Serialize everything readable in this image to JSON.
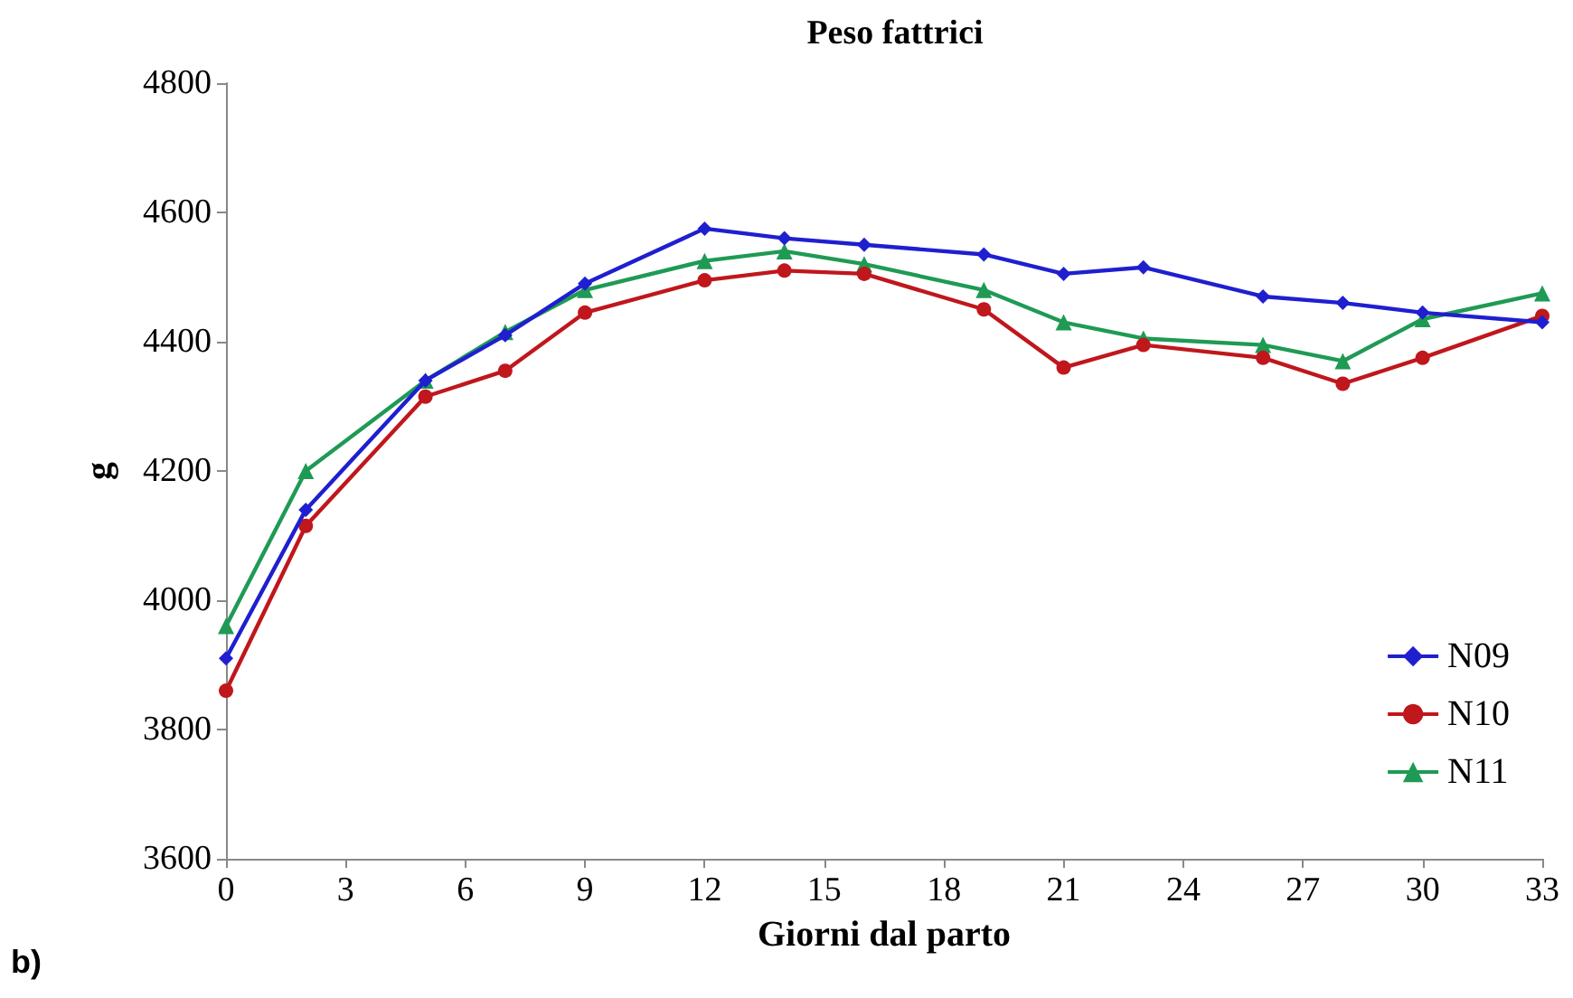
{
  "chart_data": {
    "type": "line",
    "title": "Peso fattrici",
    "xlabel": "Giorni dal parto",
    "ylabel": "g",
    "annotations": [
      "b)"
    ],
    "x": [
      0,
      2,
      5,
      7,
      9,
      12,
      14,
      16,
      19,
      21,
      23,
      26,
      28,
      30,
      33
    ],
    "series": [
      {
        "name": "N09",
        "color": "#1f1fd0",
        "marker": "diamond",
        "values": [
          3910,
          4140,
          4340,
          4410,
          4490,
          4575,
          4560,
          4550,
          4535,
          4505,
          4515,
          4470,
          4460,
          4445,
          4430
        ]
      },
      {
        "name": "N10",
        "color": "#c0171c",
        "marker": "circle",
        "values": [
          3860,
          4115,
          4315,
          4355,
          4445,
          4495,
          4510,
          4505,
          4450,
          4360,
          4395,
          4375,
          4335,
          4375,
          4440
        ]
      },
      {
        "name": "N11",
        "color": "#1f9a55",
        "marker": "triangle",
        "values": [
          3960,
          4200,
          4340,
          4415,
          4480,
          4525,
          4540,
          4520,
          4480,
          4430,
          4405,
          4395,
          4370,
          4435,
          4475
        ]
      }
    ],
    "xlim": [
      0,
      33
    ],
    "xticks": [
      0,
      3,
      6,
      9,
      12,
      15,
      18,
      21,
      24,
      27,
      30,
      33
    ],
    "ylim": [
      3600,
      4800
    ],
    "yticks": [
      3600,
      3800,
      4000,
      4200,
      4400,
      4600,
      4800
    ],
    "grid": false,
    "legend": "bottom right",
    "line_style": "solid"
  }
}
